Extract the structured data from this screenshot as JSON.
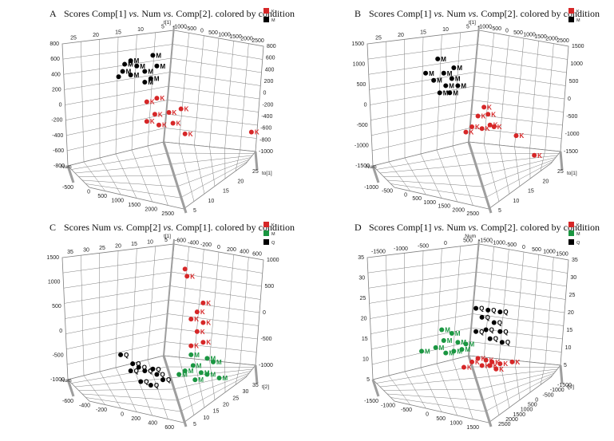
{
  "colors": {
    "K": "#d62728",
    "M": "#1a9641",
    "Q": "#000000",
    "grid": "#7f7f7f",
    "floor": "#d9d9d9",
    "black": "#000000"
  },
  "chart_data": [
    {
      "type": "scatter",
      "letter": "A",
      "title_parts": [
        "Scores Comp[1] ",
        "vs.",
        " Num ",
        "vs.",
        " Comp[2]. colored by condition"
      ],
      "axes": {
        "left_vertical_ticks": [
          "800",
          "600",
          "400",
          "200",
          "0",
          "-200",
          "-400",
          "-600",
          "-800"
        ],
        "right_vertical_ticks": [
          "800",
          "600",
          "400",
          "200",
          "0",
          "-200",
          "-400",
          "-600",
          "-800",
          "-1000"
        ],
        "top_left_ticks": [
          "25",
          "20",
          "15",
          "10",
          "5"
        ],
        "top_right_ticks": [
          "-1000",
          "-500",
          "0",
          "500",
          "1000",
          "1500",
          "2000",
          "2500"
        ],
        "floor_left_ticks": [
          "-500",
          "0",
          "500",
          "1000",
          "1500",
          "2000",
          "2500"
        ],
        "floor_right_ticks": [
          "5",
          "10",
          "15",
          "20",
          "25"
        ],
        "vertical_axis_name": "t[1]",
        "floor_left_name": "Num",
        "right_axis_name": "to[1]"
      },
      "legend": [
        {
          "name": "K",
          "color": "K"
        },
        {
          "name": "M",
          "color": "black"
        }
      ],
      "series": [
        {
          "name": "M",
          "color": "black",
          "points": [
            {
              "label": "M",
              "u": 0.34,
              "v": 0.17
            },
            {
              "label": "M",
              "u": 0.31,
              "v": 0.19
            },
            {
              "label": "M",
              "u": 0.37,
              "v": 0.2
            },
            {
              "label": "M",
              "u": 0.3,
              "v": 0.23
            },
            {
              "label": "M",
              "u": 0.34,
              "v": 0.25
            },
            {
              "label": "M",
              "u": 0.41,
              "v": 0.23
            },
            {
              "label": "M",
              "u": 0.45,
              "v": 0.14
            },
            {
              "label": "M",
              "u": 0.47,
              "v": 0.2
            },
            {
              "label": "M",
              "u": 0.44,
              "v": 0.27
            },
            {
              "label": "M",
              "u": 0.41,
              "v": 0.29
            },
            {
              "label": "",
              "u": 0.28,
              "v": 0.26
            }
          ]
        },
        {
          "name": "K",
          "color": "K",
          "points": [
            {
              "label": "K",
              "u": 0.42,
              "v": 0.4
            },
            {
              "label": "K",
              "u": 0.47,
              "v": 0.38
            },
            {
              "label": "K",
              "u": 0.46,
              "v": 0.47
            },
            {
              "label": "K",
              "u": 0.42,
              "v": 0.51
            },
            {
              "label": "K",
              "u": 0.48,
              "v": 0.53
            },
            {
              "label": "K",
              "u": 0.53,
              "v": 0.46
            },
            {
              "label": "K",
              "u": 0.55,
              "v": 0.52
            },
            {
              "label": "K",
              "u": 0.59,
              "v": 0.44
            },
            {
              "label": "K",
              "u": 0.61,
              "v": 0.58
            },
            {
              "label": "K",
              "u": 0.94,
              "v": 0.57
            }
          ]
        }
      ]
    },
    {
      "type": "scatter",
      "letter": "B",
      "title_parts": [
        "Scores Comp[1] ",
        "vs.",
        " Num ",
        "vs.",
        " Comp[2]. colored by condition"
      ],
      "axes": {
        "left_vertical_ticks": [
          "1500",
          "1000",
          "500",
          "0",
          "-500",
          "-1000",
          "-1500"
        ],
        "right_vertical_ticks": [
          "1500",
          "1000",
          "500",
          "0",
          "-500",
          "-1000",
          "-1500"
        ],
        "top_left_ticks": [
          "25",
          "20",
          "15",
          "10",
          "5"
        ],
        "top_right_ticks": [
          "-1000",
          "-500",
          "0",
          "500",
          "1000",
          "1500",
          "2000",
          "2500"
        ],
        "floor_left_ticks": [
          "-1000",
          "-500",
          "0",
          "500",
          "1000",
          "1500",
          "2000",
          "2500"
        ],
        "floor_right_ticks": [
          "5",
          "10",
          "15",
          "20",
          "25"
        ],
        "vertical_axis_name": "t[1]",
        "floor_left_name": "Num",
        "right_axis_name": "to[1]"
      },
      "legend": [
        {
          "name": "K",
          "color": "K"
        },
        {
          "name": "M",
          "color": "black"
        }
      ],
      "series": [
        {
          "name": "M",
          "color": "black",
          "points": [
            {
              "label": "M",
              "u": 0.35,
              "v": 0.16
            },
            {
              "label": "M",
              "u": 0.29,
              "v": 0.24
            },
            {
              "label": "M",
              "u": 0.38,
              "v": 0.24
            },
            {
              "label": "M",
              "u": 0.33,
              "v": 0.28
            },
            {
              "label": "M",
              "u": 0.42,
              "v": 0.27
            },
            {
              "label": "M",
              "u": 0.45,
              "v": 0.31
            },
            {
              "label": "M",
              "u": 0.39,
              "v": 0.31
            },
            {
              "label": "M",
              "u": 0.43,
              "v": 0.21
            },
            {
              "label": "M",
              "u": 0.41,
              "v": 0.35
            },
            {
              "label": "M",
              "u": 0.36,
              "v": 0.35
            }
          ]
        },
        {
          "name": "K",
          "color": "K",
          "points": [
            {
              "label": "K",
              "u": 0.58,
              "v": 0.43
            },
            {
              "label": "K",
              "u": 0.6,
              "v": 0.47
            },
            {
              "label": "K",
              "u": 0.55,
              "v": 0.48
            },
            {
              "label": "K",
              "u": 0.52,
              "v": 0.54
            },
            {
              "label": "K",
              "u": 0.61,
              "v": 0.53
            },
            {
              "label": "K",
              "u": 0.57,
              "v": 0.55
            },
            {
              "label": "K",
              "u": 0.63,
              "v": 0.54
            },
            {
              "label": "K",
              "u": 0.49,
              "v": 0.57
            },
            {
              "label": "K",
              "u": 0.74,
              "v": 0.59
            },
            {
              "label": "K",
              "u": 0.83,
              "v": 0.7
            }
          ]
        }
      ]
    },
    {
      "type": "scatter",
      "letter": "C",
      "title_parts": [
        "Scores Num ",
        "vs.",
        " Comp[2] ",
        "vs.",
        " Comp[1]. colored by condition"
      ],
      "axes": {
        "left_vertical_ticks": [
          "1500",
          "1000",
          "500",
          "0",
          "-500",
          "-1000"
        ],
        "right_vertical_ticks": [
          "1000",
          "500",
          "0",
          "-500",
          "-1000"
        ],
        "top_left_ticks": [
          "35",
          "30",
          "25",
          "20",
          "15",
          "10",
          "5"
        ],
        "top_right_ticks": [
          "-600",
          "-400",
          "-200",
          "0",
          "200",
          "400",
          "600"
        ],
        "floor_left_ticks": [
          "-600",
          "-400",
          "-200",
          "0",
          "200",
          "400",
          "600"
        ],
        "floor_right_ticks": [
          "5",
          "10",
          "15",
          "20",
          "25",
          "30",
          "35"
        ],
        "vertical_axis_name": "t[1]",
        "floor_left_name": "Num",
        "right_axis_name": "t[2]"
      },
      "legend": [
        {
          "name": "K",
          "color": "K"
        },
        {
          "name": "M",
          "color": "M"
        },
        {
          "name": "Q",
          "color": "black"
        }
      ],
      "series": [
        {
          "name": "K",
          "color": "K",
          "points": [
            {
              "label": "K",
              "u": 0.62,
              "v": 0.18
            },
            {
              "label": "K",
              "u": 0.7,
              "v": 0.33
            },
            {
              "label": "K",
              "u": 0.67,
              "v": 0.38
            },
            {
              "label": "K",
              "u": 0.64,
              "v": 0.42
            },
            {
              "label": "K",
              "u": 0.7,
              "v": 0.44
            },
            {
              "label": "K",
              "u": 0.67,
              "v": 0.49
            },
            {
              "label": "K",
              "u": 0.7,
              "v": 0.55
            },
            {
              "label": "K",
              "u": 0.64,
              "v": 0.57
            },
            {
              "label": "",
              "u": 0.61,
              "v": 0.14
            }
          ]
        },
        {
          "name": "M",
          "color": "M",
          "points": [
            {
              "label": "M",
              "u": 0.64,
              "v": 0.62
            },
            {
              "label": "M",
              "u": 0.72,
              "v": 0.64
            },
            {
              "label": "M",
              "u": 0.75,
              "v": 0.66
            },
            {
              "label": "M",
              "u": 0.65,
              "v": 0.68
            },
            {
              "label": "M",
              "u": 0.61,
              "v": 0.71
            },
            {
              "label": "M",
              "u": 0.69,
              "v": 0.72
            },
            {
              "label": "M",
              "u": 0.72,
              "v": 0.73
            },
            {
              "label": "M",
              "u": 0.78,
              "v": 0.75
            },
            {
              "label": "M",
              "u": 0.58,
              "v": 0.73
            },
            {
              "label": "M",
              "u": 0.66,
              "v": 0.76
            }
          ]
        },
        {
          "name": "Q",
          "color": "black",
          "points": [
            {
              "label": "Q",
              "u": 0.29,
              "v": 0.62
            },
            {
              "label": "Q",
              "u": 0.35,
              "v": 0.67
            },
            {
              "label": "Q",
              "u": 0.38,
              "v": 0.69
            },
            {
              "label": "Q",
              "u": 0.41,
              "v": 0.71
            },
            {
              "label": "Q",
              "u": 0.45,
              "v": 0.7
            },
            {
              "label": "Q",
              "u": 0.47,
              "v": 0.73
            },
            {
              "label": "Q",
              "u": 0.34,
              "v": 0.71
            },
            {
              "label": "Q",
              "u": 0.5,
              "v": 0.76
            },
            {
              "label": "Q",
              "u": 0.44,
              "v": 0.79
            },
            {
              "label": "Q",
              "u": 0.39,
              "v": 0.77
            }
          ]
        }
      ]
    },
    {
      "type": "scatter",
      "letter": "D",
      "title_parts": [
        "Scores Comp[1] ",
        "vs.",
        " Num ",
        "vs.",
        " Comp[2]. colored by condition"
      ],
      "axes": {
        "left_vertical_ticks": [
          "35",
          "30",
          "25",
          "20",
          "15",
          "10",
          "5"
        ],
        "right_vertical_ticks": [
          "35",
          "30",
          "25",
          "20",
          "15",
          "10",
          "5"
        ],
        "top_left_ticks": [
          "-1500",
          "-1000",
          "-500",
          "0",
          "500"
        ],
        "top_right_ticks": [
          "-1500",
          "-1000",
          "-500",
          "0",
          "500",
          "1000",
          "1500"
        ],
        "floor_left_ticks": [
          "-1500",
          "-1000",
          "-500",
          "0",
          "500",
          "1000",
          "1500"
        ],
        "floor_right_ticks": [
          "2500",
          "2000",
          "1500",
          "1000",
          "500",
          "0",
          "-500",
          "-1000",
          "-1500"
        ],
        "vertical_axis_name": "Num",
        "floor_left_name": "",
        "right_axis_name": "t[2]"
      },
      "legend": [
        {
          "name": "K",
          "color": "K"
        },
        {
          "name": "M",
          "color": "M"
        },
        {
          "name": "Q",
          "color": "black"
        }
      ],
      "series": [
        {
          "name": "Q",
          "color": "black",
          "points": [
            {
              "label": "Q",
              "u": 0.54,
              "v": 0.36
            },
            {
              "label": "Q",
              "u": 0.6,
              "v": 0.37
            },
            {
              "label": "Q",
              "u": 0.66,
              "v": 0.38
            },
            {
              "label": "Q",
              "u": 0.57,
              "v": 0.41
            },
            {
              "label": "Q",
              "u": 0.63,
              "v": 0.44
            },
            {
              "label": "Q",
              "u": 0.59,
              "v": 0.48
            },
            {
              "label": "Q",
              "u": 0.66,
              "v": 0.49
            },
            {
              "label": "Q",
              "u": 0.54,
              "v": 0.49
            },
            {
              "label": "Q",
              "u": 0.61,
              "v": 0.53
            },
            {
              "label": "Q",
              "u": 0.67,
              "v": 0.55
            }
          ]
        },
        {
          "name": "M",
          "color": "M",
          "points": [
            {
              "label": "M",
              "u": 0.37,
              "v": 0.48
            },
            {
              "label": "M",
              "u": 0.42,
              "v": 0.5
            },
            {
              "label": "M",
              "u": 0.38,
              "v": 0.54
            },
            {
              "label": "M",
              "u": 0.45,
              "v": 0.55
            },
            {
              "label": "M",
              "u": 0.49,
              "v": 0.56
            },
            {
              "label": "M",
              "u": 0.34,
              "v": 0.58
            },
            {
              "label": "M",
              "u": 0.43,
              "v": 0.6
            },
            {
              "label": "M",
              "u": 0.39,
              "v": 0.61
            },
            {
              "label": "M",
              "u": 0.47,
              "v": 0.59
            },
            {
              "label": "M",
              "u": 0.27,
              "v": 0.6
            }
          ]
        },
        {
          "name": "K",
          "color": "K",
          "points": [
            {
              "label": "K",
              "u": 0.55,
              "v": 0.64
            },
            {
              "label": "K",
              "u": 0.59,
              "v": 0.65
            },
            {
              "label": "K",
              "u": 0.62,
              "v": 0.66
            },
            {
              "label": "K",
              "u": 0.52,
              "v": 0.66
            },
            {
              "label": "K",
              "u": 0.57,
              "v": 0.68
            },
            {
              "label": "K",
              "u": 0.61,
              "v": 0.68
            },
            {
              "label": "K",
              "u": 0.66,
              "v": 0.67
            },
            {
              "label": "K",
              "u": 0.72,
              "v": 0.66
            },
            {
              "label": "K",
              "u": 0.48,
              "v": 0.69
            },
            {
              "label": "K",
              "u": 0.64,
              "v": 0.7
            }
          ]
        }
      ]
    }
  ]
}
